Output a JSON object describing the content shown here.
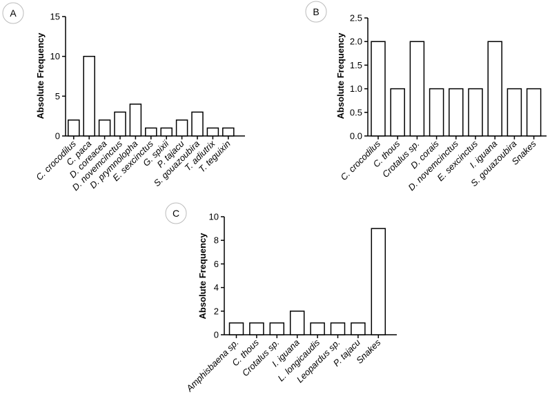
{
  "chart_data": [
    {
      "panel": "A",
      "type": "bar",
      "title": "",
      "xlabel": "",
      "ylabel": "Absolute Frequency",
      "ylim": [
        0,
        15
      ],
      "yticks": [
        0,
        5,
        10,
        15
      ],
      "ytick_labels": [
        "0",
        "5",
        "10",
        "15"
      ],
      "categories": [
        "C. crocodilus",
        "C. paca",
        "D. coreacea",
        "D. novemcinctus",
        "D. prymnolopha",
        "E. sexcinctus",
        "G. spixii",
        "P. tajacu",
        "S. gouazoubira",
        "T. adiutrix",
        "T. teguixin"
      ],
      "values": [
        2,
        10,
        2,
        3,
        4,
        1,
        1,
        2,
        3,
        1,
        1
      ],
      "grid": false
    },
    {
      "panel": "B",
      "type": "bar",
      "title": "",
      "xlabel": "",
      "ylabel": "Absolute Frequency",
      "ylim": [
        0,
        2.5
      ],
      "yticks": [
        0,
        0.5,
        1,
        1.5,
        2,
        2.5
      ],
      "ytick_labels": [
        "0.0",
        "0.5",
        "1.0",
        "1.5",
        "2.0",
        "2.5"
      ],
      "categories": [
        "C. crocodilus",
        "C. thous",
        "Crotalus sp.",
        "D. corais",
        "D. novemcinctus",
        "E. sexcinctus",
        "I. iguana",
        "S. gouazoubira",
        "Snakes"
      ],
      "values": [
        2,
        1,
        2,
        1,
        1,
        1,
        2,
        1,
        1
      ],
      "grid": false
    },
    {
      "panel": "C",
      "type": "bar",
      "title": "",
      "xlabel": "",
      "ylabel": "Absolute Frequency",
      "ylim": [
        0,
        10
      ],
      "yticks": [
        0,
        2,
        4,
        6,
        8,
        10
      ],
      "ytick_labels": [
        "0",
        "2",
        "4",
        "6",
        "8",
        "10"
      ],
      "categories": [
        "Amphisbaena sp.",
        "C. thous",
        "Crotalus sp.",
        "I. iguana",
        "L. longicaudis",
        "Leopardus sp.",
        "P. tajacu",
        "Snakes"
      ],
      "values": [
        1,
        1,
        1,
        2,
        1,
        1,
        1,
        9
      ],
      "grid": false
    }
  ]
}
